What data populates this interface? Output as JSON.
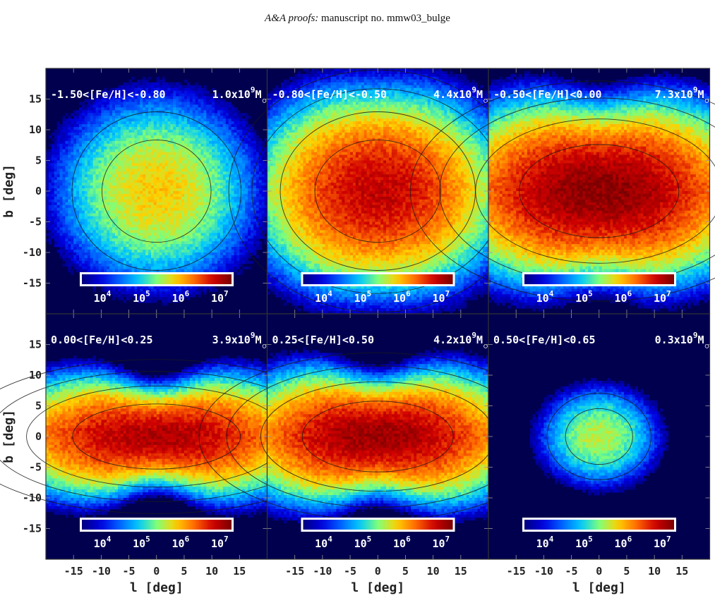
{
  "header": {
    "journal_italic": "A&A proofs:",
    "manuscript": "manuscript no. mmw03_bulge"
  },
  "colors": {
    "background_low": "#00004f",
    "colormap": [
      "#00007f",
      "#0000e0",
      "#0060ff",
      "#00c8ff",
      "#7fff7a",
      "#ffd200",
      "#ff6a00",
      "#d00000",
      "#7a0000"
    ],
    "axis_text": "#222222",
    "panel_label": "#ffffff",
    "contour": "#1a1a1a"
  },
  "chart_data": {
    "type": "heatmap",
    "description_grid": "2 rows x 3 columns of density maps",
    "xlabel": "l  [deg]",
    "ylabel": "b  [deg]",
    "xlim": [
      -20,
      20
    ],
    "ylim": [
      -20,
      20
    ],
    "xticks": [
      -15,
      -10,
      -5,
      0,
      5,
      10,
      15
    ],
    "yticks": [
      15,
      10,
      5,
      0,
      -5,
      -10,
      -15
    ],
    "colorbar": {
      "scale": "log",
      "range": [
        3000,
        20000000
      ],
      "ticks": [
        {
          "base": "10",
          "exp": "4"
        },
        {
          "base": "10",
          "exp": "5"
        },
        {
          "base": "10",
          "exp": "6"
        },
        {
          "base": "10",
          "exp": "7"
        }
      ]
    },
    "panels": [
      {
        "label": "-1.50<[Fe/H]<-0.80",
        "mass": "1.0x10",
        "mass_exp": "9",
        "mass_unit": "M",
        "peak_log": 5.9,
        "sig_l": 6.5,
        "sig_b": 5.5,
        "pinch": 0.0,
        "thin_disk": 0.0
      },
      {
        "label": "-0.80<[Fe/H]<-0.50",
        "mass": "4.4x10",
        "mass_exp": "9",
        "mass_unit": "M",
        "peak_log": 6.9,
        "sig_l": 7.5,
        "sig_b": 5.5,
        "pinch": 0.05,
        "thin_disk": 0.1
      },
      {
        "label": "-0.50<[Fe/H]<0.00",
        "mass": "7.3x10",
        "mass_exp": "9",
        "mass_unit": "M",
        "peak_log": 7.2,
        "sig_l": 9.5,
        "sig_b": 5.0,
        "pinch": 0.15,
        "thin_disk": 0.35
      },
      {
        "label": "0.00<[Fe/H]<0.25",
        "mass": "3.9x10",
        "mass_exp": "9",
        "mass_unit": "M",
        "peak_log": 7.0,
        "sig_l": 10.0,
        "sig_b": 3.5,
        "pinch": 0.3,
        "thin_disk": 0.7
      },
      {
        "label": "0.25<[Fe/H]<0.50",
        "mass": "4.2x10",
        "mass_exp": "9",
        "mass_unit": "M",
        "peak_log": 7.1,
        "sig_l": 9.0,
        "sig_b": 3.8,
        "pinch": 0.25,
        "thin_disk": 0.6
      },
      {
        "label": "0.50<[Fe/H]<0.65",
        "mass": "0.3x10",
        "mass_exp": "9",
        "mass_unit": "M",
        "peak_log": 5.6,
        "sig_l": 4.0,
        "sig_b": 3.0,
        "pinch": 0.0,
        "thin_disk": 0.0
      }
    ]
  }
}
